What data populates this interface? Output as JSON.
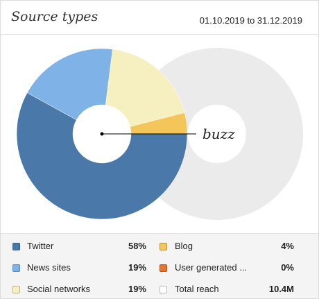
{
  "header": {
    "title": "Source types",
    "date_range": "01.10.2019 to 31.12.2019"
  },
  "chart_label": "buzz",
  "chart_data": {
    "type": "pie",
    "categories": [
      "Twitter",
      "News sites",
      "Social networks",
      "Blog",
      "User generated ...",
      "Total reach"
    ],
    "values": [
      58,
      19,
      19,
      4,
      0,
      10.4
    ],
    "units": [
      "%",
      "%",
      "%",
      "%",
      "%",
      "M"
    ],
    "colors": {
      "Twitter": "#4a78a8",
      "News sites": "#7fb3e8",
      "Social networks": "#f6f0c0",
      "Blog": "#f4c65a",
      "User generated ...": "#e8732e",
      "Total reach": "#ebebeb"
    }
  },
  "legend": {
    "left": [
      {
        "name": "Twitter",
        "value": "58%",
        "color": "#4a78a8"
      },
      {
        "name": "News sites",
        "value": "19%",
        "color": "#7fb3e8"
      },
      {
        "name": "Social networks",
        "value": "19%",
        "color": "#f6f0c0"
      }
    ],
    "right": [
      {
        "name": "Blog",
        "value": "4%",
        "color": "#f4c65a"
      },
      {
        "name": "User generated ...",
        "value": "0%",
        "color": "#e8732e"
      },
      {
        "name": "Total reach",
        "value": "10.4M",
        "color": "#ffffff"
      }
    ]
  }
}
